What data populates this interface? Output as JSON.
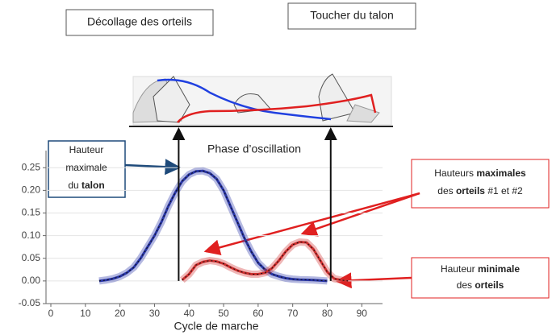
{
  "chart_data": {
    "type": "line",
    "events": [
      {
        "label": "Décollage des orteils",
        "x": 37
      },
      {
        "label": "Toucher du talon",
        "x": 81
      }
    ],
    "phase_label": "Phase d’oscillation",
    "x_label": "Cycle de marche",
    "heel_box": [
      [
        "Hauteur"
      ],
      [
        "maximale"
      ],
      [
        "du ",
        {
          "text": "talon",
          "bold": true
        }
      ]
    ],
    "toe_max_box": [
      [
        "Hauteurs ",
        {
          "text": "maximales",
          "bold": true
        }
      ],
      [
        "des ",
        {
          "text": "orteils",
          "bold": true
        },
        " #1 et #2"
      ]
    ],
    "toe_min_box": [
      [
        "Hauteur ",
        {
          "text": "minimale",
          "bold": true
        }
      ],
      [
        "des ",
        {
          "text": "orteils",
          "bold": true
        }
      ]
    ],
    "series": [
      {
        "color": "#2a37a8",
        "x": [
          14,
          16,
          18,
          20,
          22,
          24,
          26,
          28,
          30,
          32,
          34,
          36,
          38,
          40,
          42,
          44,
          46,
          48,
          50,
          52,
          54,
          56,
          58,
          60,
          62,
          64,
          66,
          68,
          70,
          72,
          76,
          80
        ],
        "values": [
          0,
          0.002,
          0.005,
          0.01,
          0.018,
          0.03,
          0.05,
          0.075,
          0.1,
          0.13,
          0.165,
          0.195,
          0.22,
          0.235,
          0.242,
          0.243,
          0.238,
          0.225,
          0.2,
          0.165,
          0.13,
          0.095,
          0.065,
          0.04,
          0.025,
          0.015,
          0.01,
          0.006,
          0.004,
          0.003,
          0.002,
          0
        ]
      },
      {
        "color": "#d03030",
        "x": [
          38,
          40,
          42,
          44,
          46,
          48,
          50,
          52,
          54,
          56,
          58,
          60,
          62,
          64,
          66,
          68,
          70,
          72,
          74,
          76,
          78,
          80,
          82,
          84,
          86
        ],
        "values": [
          0.002,
          0.015,
          0.035,
          0.042,
          0.045,
          0.043,
          0.038,
          0.03,
          0.023,
          0.018,
          0.015,
          0.015,
          0.018,
          0.028,
          0.045,
          0.065,
          0.08,
          0.086,
          0.085,
          0.07,
          0.045,
          0.02,
          0.005,
          0.002,
          0
        ]
      }
    ],
    "xlim": [
      0,
      96
    ],
    "xticks": [
      0,
      10,
      20,
      30,
      40,
      50,
      60,
      70,
      80,
      90
    ],
    "ylim": [
      -0.05,
      0.27
    ],
    "yticks": [
      -0.05,
      {
        "value": 0,
        "label": "0.00"
      },
      {
        "value": 0.05,
        "label": "0.05"
      },
      {
        "value": 0.1,
        "label": "0.10"
      },
      0.15,
      {
        "value": 0.2,
        "label": "0.20"
      },
      0.25
    ],
    "grid": true
  }
}
